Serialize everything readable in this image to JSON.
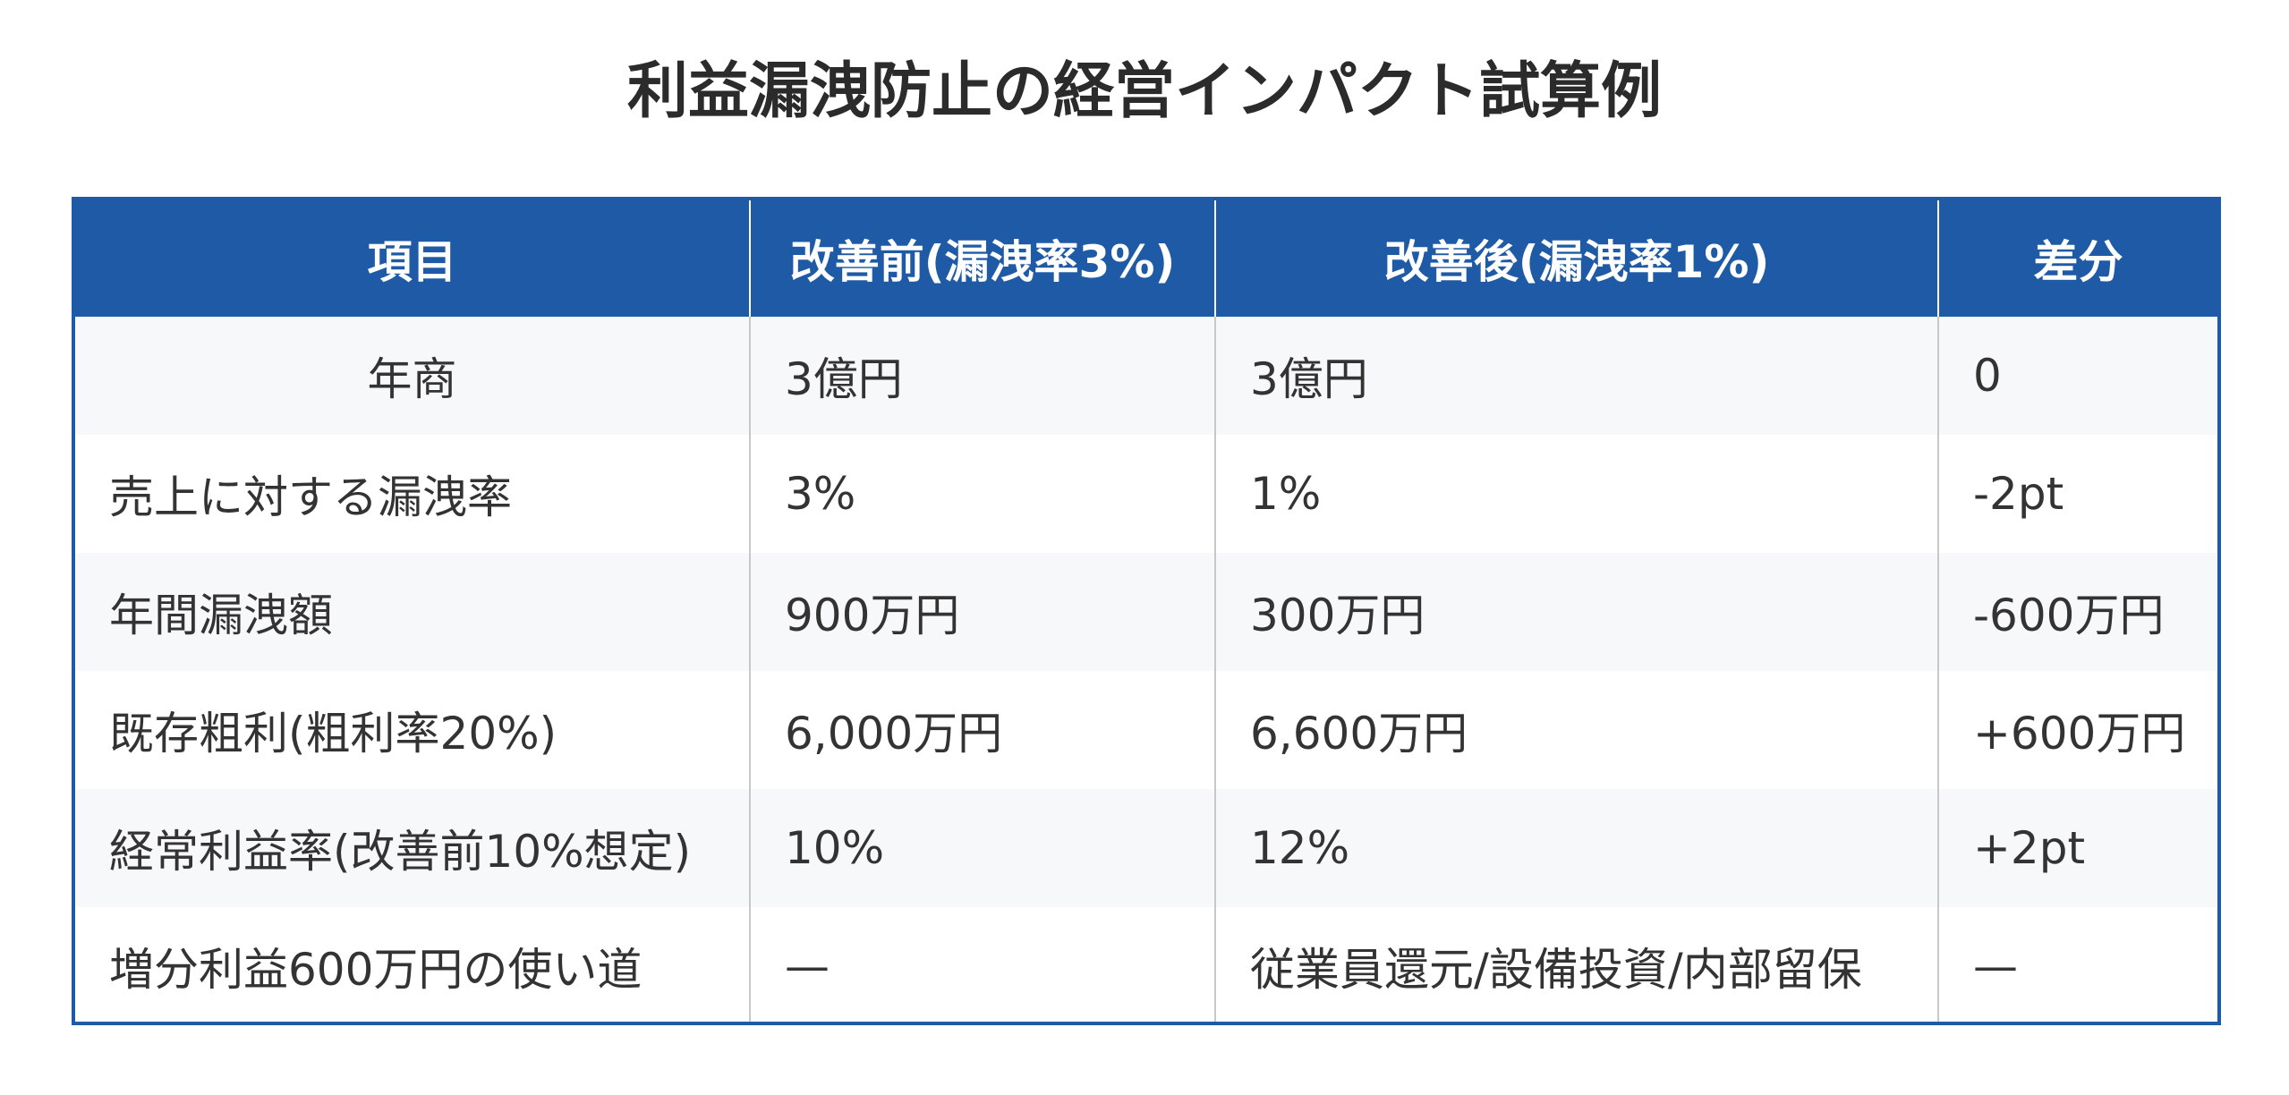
{
  "title": "利益漏洩防止の経営インパクト試算例",
  "table": {
    "headers": [
      "項目",
      "改善前(漏洩率3%)",
      "改善後(漏洩率1%)",
      "差分"
    ],
    "rows": [
      [
        "年商",
        "3億円",
        "3億円",
        "0"
      ],
      [
        "売上に対する漏洩率",
        "3%",
        "1%",
        "-2pt"
      ],
      [
        "年間漏洩額",
        "900万円",
        "300万円",
        "-600万円"
      ],
      [
        "既存粗利(粗利率20%)",
        "6,000万円",
        "6,600万円",
        "+600万円"
      ],
      [
        "経常利益率(改善前10%想定)",
        "10%",
        "12%",
        "+2pt"
      ],
      [
        "増分利益600万円の使い道",
        "—",
        "従業員還元/設備投資/内部留保",
        "—"
      ]
    ]
  },
  "colors": {
    "header_bg": "#1f5aa6",
    "header_text": "#ffffff",
    "border": "#1f5aa6",
    "stripe": "#f7f8fa"
  }
}
